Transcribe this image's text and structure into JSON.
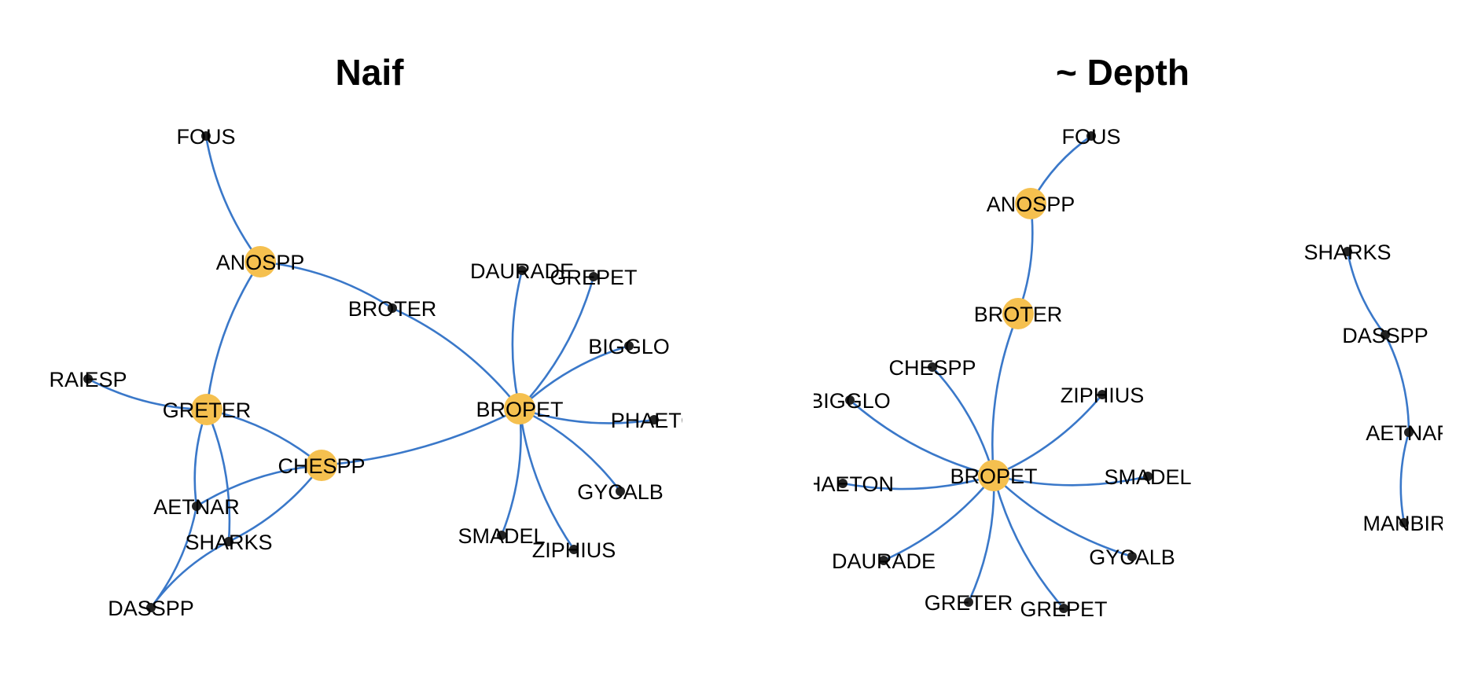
{
  "panels": [
    {
      "title": "Naif",
      "nodes": [
        {
          "id": "FOUS",
          "label": "FOUS",
          "hub": false
        },
        {
          "id": "ANOSPP",
          "label": "ANOSPP",
          "hub": true
        },
        {
          "id": "BROTER",
          "label": "BROTER",
          "hub": false
        },
        {
          "id": "RAIESP",
          "label": "RAIESP",
          "hub": false
        },
        {
          "id": "GRETER",
          "label": "GRETER",
          "hub": true
        },
        {
          "id": "CHESPP",
          "label": "CHESPP",
          "hub": true
        },
        {
          "id": "AETNAR",
          "label": "AETNAR",
          "hub": false
        },
        {
          "id": "SHARKS",
          "label": "SHARKS",
          "hub": false
        },
        {
          "id": "DASSPP",
          "label": "DASSPP",
          "hub": false
        },
        {
          "id": "BROPET",
          "label": "BROPET",
          "hub": true
        },
        {
          "id": "DAURADE",
          "label": "DAURADE",
          "hub": false
        },
        {
          "id": "GREPET",
          "label": "GREPET",
          "hub": false
        },
        {
          "id": "BIGGLO",
          "label": "BIGGLO",
          "hub": false
        },
        {
          "id": "PHAETO",
          "label": "PHAETO",
          "hub": false
        },
        {
          "id": "GYCALB",
          "label": "GYCALB",
          "hub": false
        },
        {
          "id": "ZIPHIUS",
          "label": "ZIPHIUS",
          "hub": false
        },
        {
          "id": "SMADEL",
          "label": "SMADEL",
          "hub": false
        }
      ],
      "edges": [
        [
          "FOUS",
          "ANOSPP"
        ],
        [
          "ANOSPP",
          "BROTER"
        ],
        [
          "ANOSPP",
          "GRETER"
        ],
        [
          "BROTER",
          "BROPET"
        ],
        [
          "RAIESP",
          "GRETER"
        ],
        [
          "GRETER",
          "CHESPP"
        ],
        [
          "GRETER",
          "AETNAR"
        ],
        [
          "GRETER",
          "SHARKS"
        ],
        [
          "CHESPP",
          "AETNAR"
        ],
        [
          "CHESPP",
          "SHARKS"
        ],
        [
          "CHESPP",
          "BROPET"
        ],
        [
          "AETNAR",
          "DASSPP"
        ],
        [
          "SHARKS",
          "DASSPP"
        ],
        [
          "BROPET",
          "DAURADE"
        ],
        [
          "BROPET",
          "GREPET"
        ],
        [
          "BROPET",
          "BIGGLO"
        ],
        [
          "BROPET",
          "PHAETO"
        ],
        [
          "BROPET",
          "GYCALB"
        ],
        [
          "BROPET",
          "ZIPHIUS"
        ],
        [
          "BROPET",
          "SMADEL"
        ]
      ]
    },
    {
      "title": "~ Depth",
      "nodes": [
        {
          "id": "FOUS",
          "label": "FOUS",
          "hub": false
        },
        {
          "id": "ANOSPP",
          "label": "ANOSPP",
          "hub": true
        },
        {
          "id": "BROTER",
          "label": "BROTER",
          "hub": true
        },
        {
          "id": "BROPET",
          "label": "BROPET",
          "hub": true
        },
        {
          "id": "CHESPP",
          "label": "CHESPP",
          "hub": false
        },
        {
          "id": "BIGGLO",
          "label": "BIGGLO",
          "hub": false
        },
        {
          "id": "ZIPHIUS",
          "label": "ZIPHIUS",
          "hub": false
        },
        {
          "id": "PHAETON",
          "label": "PHAETON",
          "hub": false
        },
        {
          "id": "SMADEL",
          "label": "SMADEL",
          "hub": false
        },
        {
          "id": "DAURADE",
          "label": "DAURADE",
          "hub": false
        },
        {
          "id": "GYCALB",
          "label": "GYCALB",
          "hub": false
        },
        {
          "id": "GRETER",
          "label": "GRETER",
          "hub": false
        },
        {
          "id": "GREPET",
          "label": "GREPET",
          "hub": false
        },
        {
          "id": "SHARKS",
          "label": "SHARKS",
          "hub": false
        },
        {
          "id": "DASSPP",
          "label": "DASSPP",
          "hub": false
        },
        {
          "id": "AETNAR",
          "label": "AETNAR",
          "hub": false
        },
        {
          "id": "MANBIR",
          "label": "MANBIR",
          "hub": false
        }
      ],
      "edges": [
        [
          "FOUS",
          "ANOSPP"
        ],
        [
          "ANOSPP",
          "BROTER"
        ],
        [
          "BROTER",
          "BROPET"
        ],
        [
          "CHESPP",
          "BROPET"
        ],
        [
          "BIGGLO",
          "BROPET"
        ],
        [
          "ZIPHIUS",
          "BROPET"
        ],
        [
          "PHAETON",
          "BROPET"
        ],
        [
          "SMADEL",
          "BROPET"
        ],
        [
          "DAURADE",
          "BROPET"
        ],
        [
          "GYCALB",
          "BROPET"
        ],
        [
          "GRETER",
          "BROPET"
        ],
        [
          "GREPET",
          "BROPET"
        ],
        [
          "SHARKS",
          "DASSPP"
        ],
        [
          "DASSPP",
          "AETNAR"
        ],
        [
          "AETNAR",
          "MANBIR"
        ]
      ]
    }
  ]
}
